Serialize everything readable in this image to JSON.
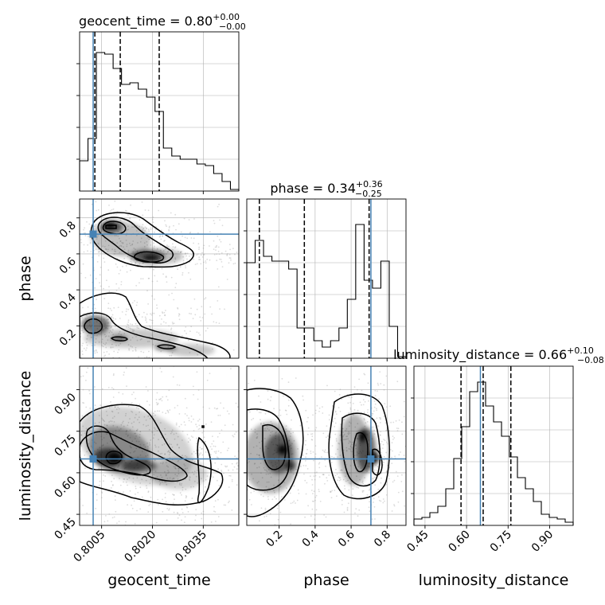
{
  "figure": {
    "type": "corner-plot",
    "parameters": [
      "geocent_time",
      "phase",
      "luminosity_distance"
    ]
  },
  "colors": {
    "truth": "#4682b4",
    "hist": "#000000",
    "grid": "#b0b0b0",
    "scatter": "#9a9a9a",
    "contour": "#000000"
  },
  "titles": {
    "geocent_time": {
      "label": "geocent_time = 0.80",
      "sup": "+0.00",
      "sub": "−0.00"
    },
    "phase": {
      "label": "phase = 0.34",
      "sup": "+0.36",
      "sub": "−0.25"
    },
    "luminosity_distance": {
      "label": "luminosity_distance = 0.66",
      "sup": "+0.10",
      "sub": "−0.08"
    }
  },
  "chart_data": {
    "type": "corner",
    "parameters": [
      {
        "name": "geocent_time",
        "xlabel": "geocent_time",
        "range": [
          0.79985,
          0.80455
        ],
        "ticks": [
          0.8005,
          0.802,
          0.8035
        ],
        "tick_labels": [
          "0.8005",
          "0.8020",
          "0.8035"
        ],
        "truth": 0.80025,
        "quantiles": [
          0.8003,
          0.80105,
          0.8022
        ],
        "hist_heights": [
          0.19,
          0.33,
          0.87,
          0.86,
          0.77,
          0.67,
          0.68,
          0.64,
          0.59,
          0.5,
          0.27,
          0.22,
          0.2,
          0.2,
          0.17,
          0.16,
          0.11,
          0.06,
          0.01
        ]
      },
      {
        "name": "phase",
        "xlabel": "phase",
        "ylabel": "phase",
        "range": [
          0.02,
          0.905
        ],
        "ticks": [
          0.2,
          0.4,
          0.6,
          0.8
        ],
        "tick_labels": [
          "0.2",
          "0.4",
          "0.6",
          "0.8"
        ],
        "truth": 0.71,
        "quantiles": [
          0.09,
          0.34,
          0.7
        ],
        "hist_heights": [
          0.6,
          0.74,
          0.64,
          0.61,
          0.61,
          0.56,
          0.19,
          0.19,
          0.11,
          0.07,
          0.11,
          0.19,
          0.37,
          0.84,
          0.49,
          0.44,
          0.61,
          0.2,
          0.01
        ]
      },
      {
        "name": "luminosity_distance",
        "xlabel": "luminosity_distance",
        "ylabel": "luminosity_distance",
        "range": [
          0.41,
          0.985
        ],
        "ticks": [
          0.45,
          0.6,
          0.75,
          0.9
        ],
        "tick_labels": [
          "0.45",
          "0.60",
          "0.75",
          "0.90"
        ],
        "truth": 0.65,
        "quantiles": [
          0.58,
          0.66,
          0.76
        ],
        "hist_heights": [
          0.04,
          0.05,
          0.08,
          0.12,
          0.23,
          0.42,
          0.62,
          0.84,
          0.9,
          0.75,
          0.65,
          0.56,
          0.43,
          0.3,
          0.23,
          0.15,
          0.07,
          0.05,
          0.04,
          0.02
        ]
      }
    ]
  }
}
